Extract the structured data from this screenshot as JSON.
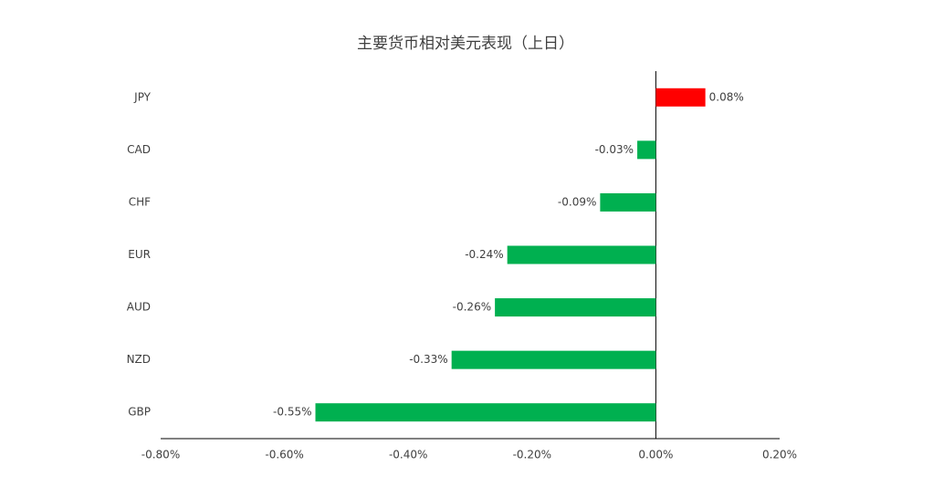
{
  "chart_data": {
    "type": "hbar",
    "title": "主要货币相对美元表现（上日）",
    "categories": [
      "JPY",
      "CAD",
      "CHF",
      "EUR",
      "AUD",
      "NZD",
      "GBP"
    ],
    "values": [
      0.08,
      -0.03,
      -0.09,
      -0.24,
      -0.26,
      -0.33,
      -0.55
    ],
    "value_labels": [
      "0.08%",
      "-0.03%",
      "-0.09%",
      "-0.24%",
      "-0.26%",
      "-0.33%",
      "-0.55%"
    ],
    "colors": [
      "#ff0000",
      "#00b050",
      "#00b050",
      "#00b050",
      "#00b050",
      "#00b050",
      "#00b050"
    ],
    "xlim": [
      -0.8,
      0.2
    ],
    "xticks": [
      {
        "value": -0.8,
        "label": "-0.80%"
      },
      {
        "value": -0.6,
        "label": "-0.60%"
      },
      {
        "value": -0.4,
        "label": "-0.40%"
      },
      {
        "value": -0.2,
        "label": "-0.20%"
      },
      {
        "value": 0,
        "label": "0.00%"
      },
      {
        "value": 0.2,
        "label": "0.20%"
      }
    ],
    "grid": false
  }
}
